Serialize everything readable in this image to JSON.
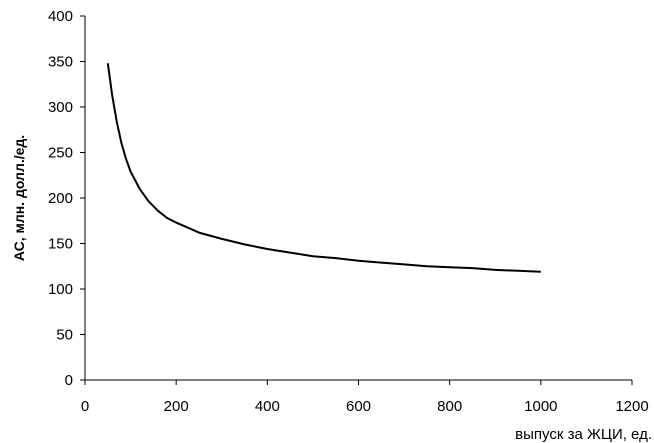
{
  "chart_data": {
    "type": "line",
    "title": "",
    "xlabel": "выпуск за ЖЦИ, ед.",
    "ylabel": "АС, млн. долл./ед.",
    "xlim": [
      0,
      1200
    ],
    "ylim": [
      0,
      400
    ],
    "xticks": [
      0,
      200,
      400,
      600,
      800,
      1000,
      1200
    ],
    "yticks": [
      0,
      50,
      100,
      150,
      200,
      250,
      300,
      350,
      400
    ],
    "grid": false,
    "legend": "none",
    "series": [
      {
        "color": "#000000",
        "x": [
          50,
          60,
          70,
          80,
          90,
          100,
          120,
          140,
          160,
          180,
          200,
          250,
          300,
          350,
          400,
          450,
          500,
          550,
          600,
          650,
          700,
          750,
          800,
          850,
          900,
          950,
          1000
        ],
        "y": [
          348,
          312,
          283,
          260,
          243,
          229,
          210,
          196,
          186,
          178,
          173,
          162,
          155,
          149,
          144,
          140,
          136,
          134,
          131,
          129,
          127,
          125,
          124,
          123,
          121,
          120,
          119
        ]
      }
    ]
  }
}
